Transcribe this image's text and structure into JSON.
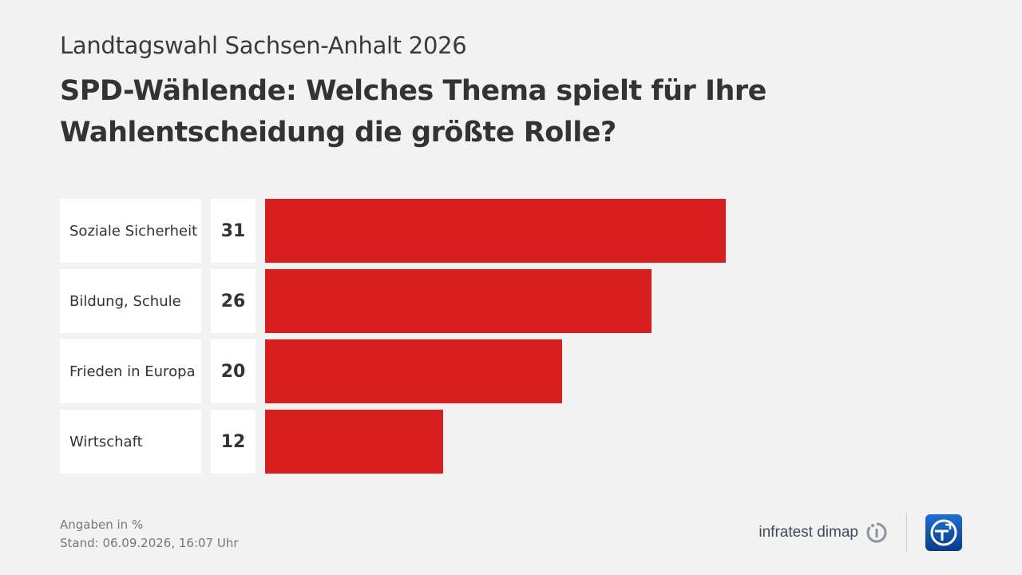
{
  "header": {
    "supertitle": "Landtagswahl Sachsen-Anhalt 2026",
    "title": "SPD-Wählende: Welches Thema spielt für Ihre Wahlentscheidung die größte Rolle?"
  },
  "chart_data": {
    "type": "bar",
    "orientation": "horizontal",
    "categories": [
      "Soziale Sicherheit",
      "Bildung, Schule",
      "Frieden in Europa",
      "Wirtschaft"
    ],
    "values": [
      31,
      26,
      20,
      12
    ],
    "unit": "%",
    "bar_color": "#d81f1f",
    "xlim": [
      0,
      31
    ],
    "grid": false
  },
  "footer": {
    "unit_note": "Angaben in %",
    "date_note": "Stand:  06.09.2026, 16:07 Uhr"
  },
  "branding": {
    "pollster": "infratest dimap",
    "pollster_icon": "infratest-dimap-logo-icon",
    "broadcaster_icon": "tagesschau-logo-icon"
  }
}
